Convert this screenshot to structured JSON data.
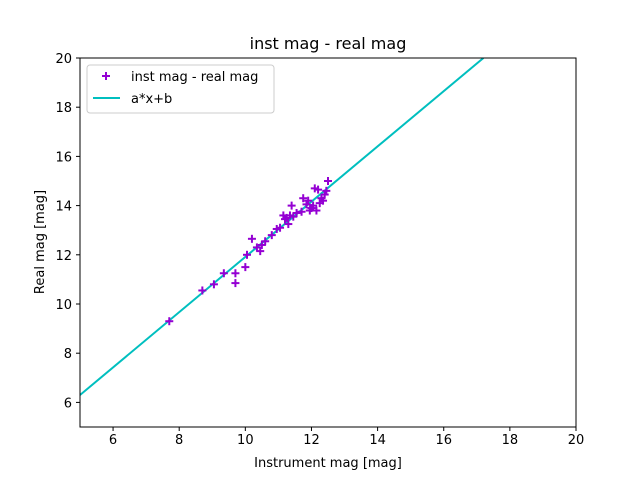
{
  "chart_data": {
    "type": "scatter",
    "title": "inst mag - real mag",
    "xlabel": "Instrument mag [mag]",
    "ylabel": "Real mag [mag]",
    "xlim": [
      5,
      20
    ],
    "ylim": [
      5,
      20
    ],
    "xticks": [
      6,
      8,
      10,
      12,
      14,
      16,
      18,
      20
    ],
    "yticks": [
      6,
      8,
      10,
      12,
      14,
      16,
      18,
      20
    ],
    "grid": false,
    "legend_position": "upper-left",
    "series": [
      {
        "name": "inst mag - real mag",
        "kind": "scatter",
        "marker": "plus",
        "color": "#9400d3",
        "points": [
          [
            7.7,
            9.3
          ],
          [
            8.7,
            10.55
          ],
          [
            9.05,
            10.8
          ],
          [
            9.35,
            11.25
          ],
          [
            9.7,
            11.25
          ],
          [
            9.7,
            10.85
          ],
          [
            10.0,
            11.5
          ],
          [
            10.05,
            12.0
          ],
          [
            10.2,
            12.65
          ],
          [
            10.35,
            12.3
          ],
          [
            10.45,
            12.15
          ],
          [
            10.5,
            12.4
          ],
          [
            10.6,
            12.55
          ],
          [
            10.8,
            12.8
          ],
          [
            10.95,
            13.05
          ],
          [
            11.05,
            13.1
          ],
          [
            11.15,
            13.6
          ],
          [
            11.2,
            13.45
          ],
          [
            11.25,
            13.5
          ],
          [
            11.3,
            13.25
          ],
          [
            11.35,
            13.6
          ],
          [
            11.4,
            14.0
          ],
          [
            11.45,
            13.55
          ],
          [
            11.55,
            13.7
          ],
          [
            11.7,
            13.75
          ],
          [
            11.75,
            14.3
          ],
          [
            11.85,
            14.05
          ],
          [
            11.9,
            14.2
          ],
          [
            11.95,
            13.8
          ],
          [
            12.0,
            13.9
          ],
          [
            12.05,
            14.0
          ],
          [
            12.1,
            14.7
          ],
          [
            12.15,
            13.8
          ],
          [
            12.2,
            14.65
          ],
          [
            12.25,
            14.1
          ],
          [
            12.3,
            14.3
          ],
          [
            12.35,
            14.2
          ],
          [
            12.4,
            14.45
          ],
          [
            12.45,
            14.6
          ],
          [
            12.5,
            15.0
          ]
        ]
      },
      {
        "name": "a*x+b",
        "kind": "line",
        "color": "#00bfbf",
        "x": [
          5,
          17.2
        ],
        "y": [
          6.3,
          20
        ]
      }
    ]
  }
}
